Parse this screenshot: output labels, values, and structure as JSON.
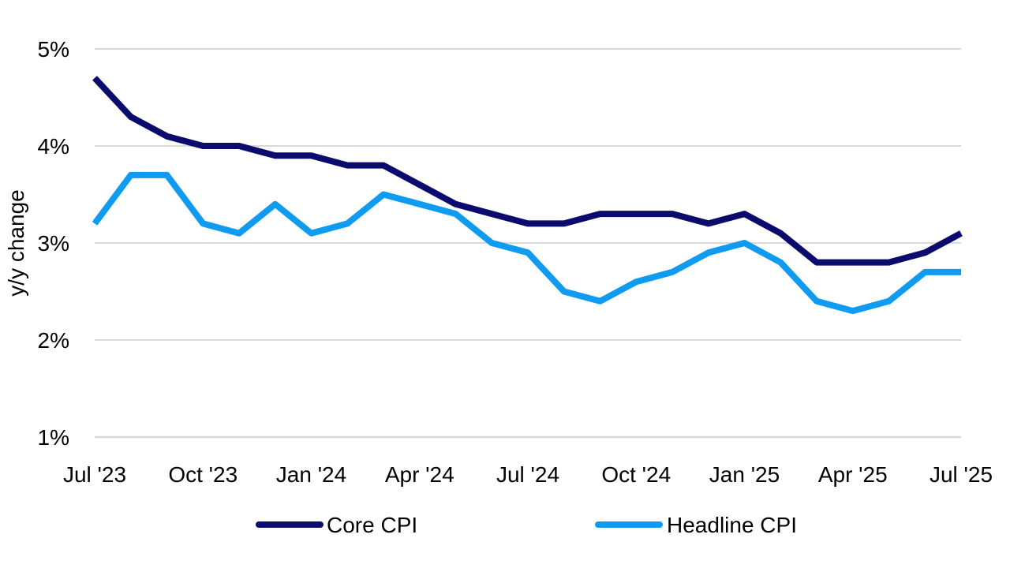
{
  "chart_data": {
    "type": "line",
    "title": "",
    "xlabel": "",
    "ylabel": "y/y change",
    "ylim": [
      1,
      5
    ],
    "y_ticks": [
      "1%",
      "2%",
      "3%",
      "4%",
      "5%"
    ],
    "y_tick_values": [
      1,
      2,
      3,
      4,
      5
    ],
    "x": [
      "Jul '23",
      "Aug '23",
      "Sep '23",
      "Oct '23",
      "Nov '23",
      "Dec '23",
      "Jan '24",
      "Feb '24",
      "Mar '24",
      "Apr '24",
      "May '24",
      "Jun '24",
      "Jul '24",
      "Aug '24",
      "Sep '24",
      "Oct '24",
      "Nov '24",
      "Dec '24",
      "Jan '25",
      "Feb '25",
      "Mar '25",
      "Apr '25",
      "May '25",
      "Jun '25",
      "Jul '25"
    ],
    "x_tick_labels": [
      "Jul '23",
      "Oct '23",
      "Jan '24",
      "Apr '24",
      "Jul '24",
      "Oct '24",
      "Jan '25",
      "Apr '25",
      "Jul '25"
    ],
    "grid": true,
    "legend_position": "bottom",
    "series": [
      {
        "name": "Core CPI",
        "color": "#0b0b6e",
        "values": [
          4.7,
          4.3,
          4.1,
          4.0,
          4.0,
          3.9,
          3.9,
          3.8,
          3.8,
          3.6,
          3.4,
          3.3,
          3.2,
          3.2,
          3.3,
          3.3,
          3.3,
          3.2,
          3.3,
          3.1,
          2.8,
          2.8,
          2.8,
          2.9,
          3.1
        ]
      },
      {
        "name": "Headline CPI",
        "color": "#0f9bf0",
        "values": [
          3.2,
          3.7,
          3.7,
          3.2,
          3.1,
          3.4,
          3.1,
          3.2,
          3.5,
          3.4,
          3.3,
          3.0,
          2.9,
          2.5,
          2.4,
          2.6,
          2.7,
          2.9,
          3.0,
          2.8,
          2.4,
          2.3,
          2.4,
          2.7,
          2.7
        ]
      }
    ]
  }
}
